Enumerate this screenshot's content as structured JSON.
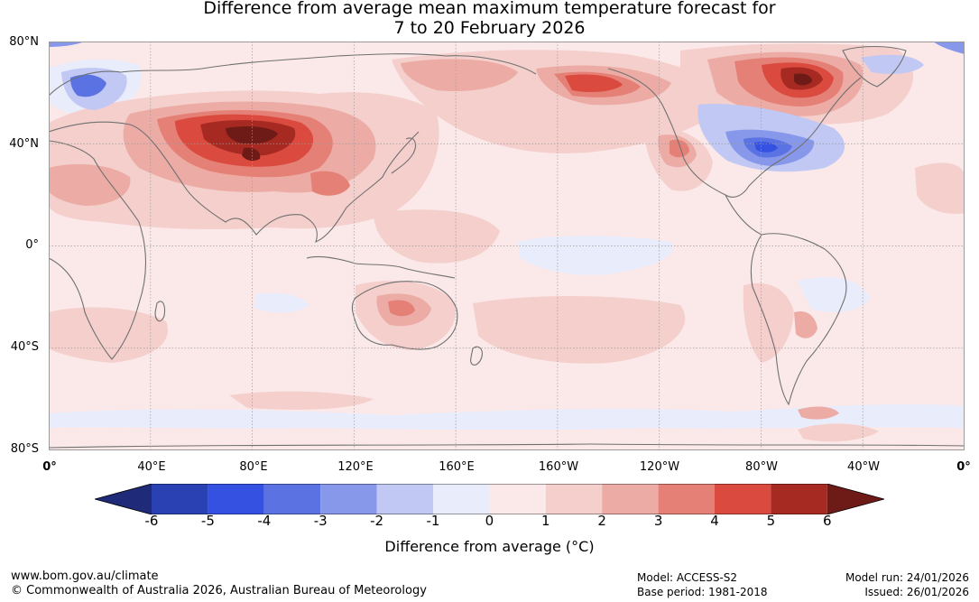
{
  "title": {
    "line1": "Difference from average mean maximum temperature forecast for",
    "line2": "7 to 20 February 2026"
  },
  "map": {
    "lat_labels": [
      "80°N",
      "40°N",
      "0°",
      "40°S",
      "80°S"
    ],
    "lon_labels": [
      "0°",
      "40°E",
      "80°E",
      "120°E",
      "160°E",
      "160°W",
      "120°W",
      "80°W",
      "40°W",
      "0°"
    ],
    "colors": {
      "c_m6": "#1f2a78",
      "c_m5": "#2a41b4",
      "c_m4": "#3451e2",
      "c_m3": "#5b72e2",
      "c_m2": "#8797ea",
      "c_m1": "#c0c8f3",
      "c_0": "#e9ecfb",
      "c_1": "#fbe9e9",
      "c_2": "#f4cfcc",
      "c_3": "#ecaca5",
      "c_4": "#e58076",
      "c_5": "#da4a3e",
      "c_6": "#a62a22",
      "c_7": "#6e1b17",
      "coast": "#707070",
      "grid": "#9a9a9a"
    }
  },
  "colorbar": {
    "ticks": [
      "-6",
      "-5",
      "-4",
      "-3",
      "-2",
      "-1",
      "0",
      "1",
      "2",
      "3",
      "4",
      "5",
      "6"
    ],
    "label": "Difference from average (°C)"
  },
  "footer": {
    "website": "www.bom.gov.au/climate",
    "copyright": "© Commonwealth of Australia 2026, Australian Bureau of Meteorology",
    "model": "Model: ACCESS-S2",
    "base_period": "Base period: 1981-2018",
    "model_run": "Model run: 24/01/2026",
    "issued": "Issued: 26/01/2026"
  }
}
